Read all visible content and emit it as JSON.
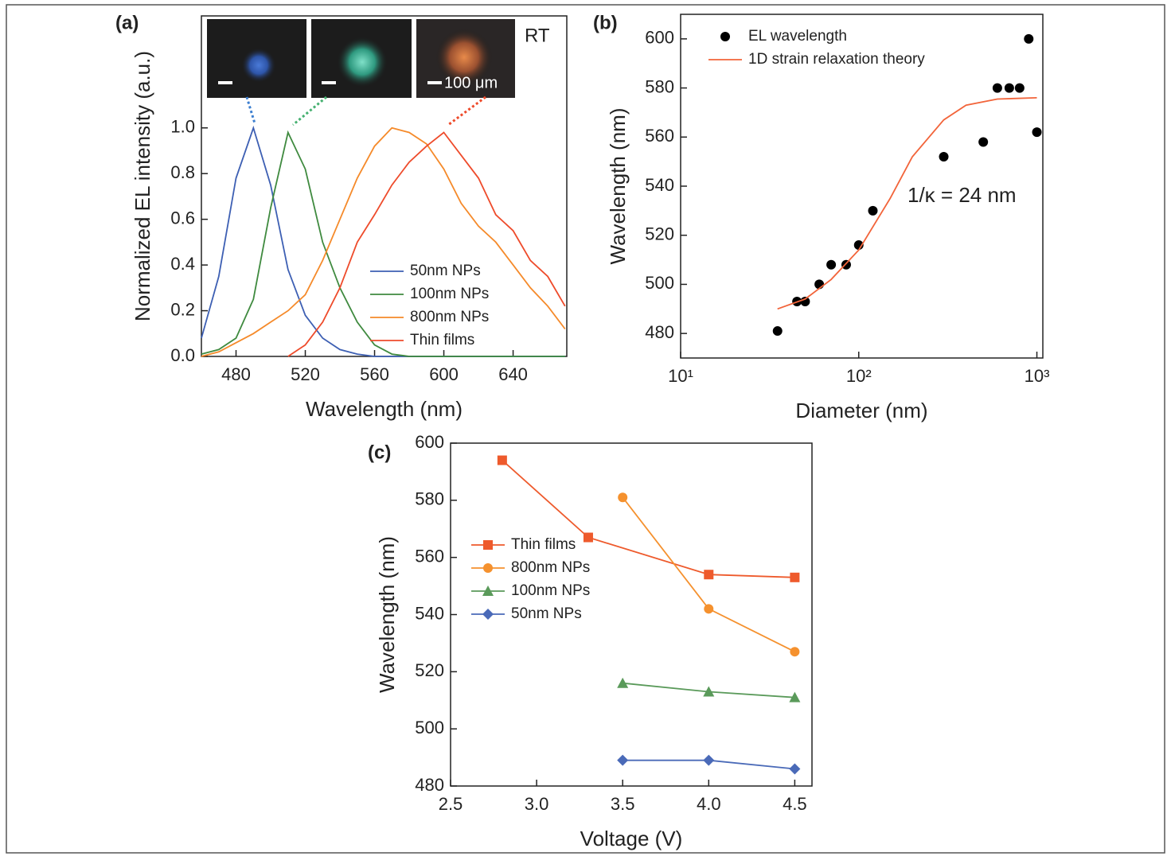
{
  "chart_data": [
    {
      "type": "line",
      "label": "(a)",
      "x_label": "Wavelength (nm)",
      "y_label": "Normalized EL intensity (a.u.)",
      "annotations": [
        "RT",
        "100 μm"
      ],
      "x": [
        460,
        470,
        480,
        490,
        500,
        510,
        520,
        530,
        540,
        550,
        560,
        570,
        580,
        590,
        600,
        610,
        620,
        630,
        640,
        650,
        660,
        670
      ],
      "series": [
        {
          "name": "50nm NPs",
          "color": "#3d5fb3",
          "values": [
            0.08,
            0.35,
            0.78,
            1.0,
            0.75,
            0.38,
            0.18,
            0.08,
            0.03,
            0.01,
            0,
            0,
            0,
            0,
            0,
            0,
            0,
            0,
            0,
            0,
            0,
            0
          ]
        },
        {
          "name": "100nm NPs",
          "color": "#3f8a3f",
          "values": [
            0.01,
            0.03,
            0.08,
            0.25,
            0.65,
            0.98,
            0.82,
            0.5,
            0.3,
            0.15,
            0.05,
            0.01,
            0,
            0,
            0,
            0,
            0,
            0,
            0,
            0,
            0,
            0
          ]
        },
        {
          "name": "800nm NPs",
          "color": "#f58a2a",
          "values": [
            0,
            0.02,
            0.06,
            0.1,
            0.15,
            0.2,
            0.27,
            0.42,
            0.6,
            0.78,
            0.92,
            1.0,
            0.98,
            0.93,
            0.82,
            0.67,
            0.57,
            0.5,
            0.4,
            0.3,
            0.22,
            0.12
          ]
        },
        {
          "name": "Thin films",
          "color": "#ee4b2b",
          "values": [
            null,
            null,
            null,
            null,
            null,
            0.0,
            0.05,
            0.15,
            0.3,
            0.5,
            0.62,
            0.75,
            0.85,
            0.92,
            0.98,
            0.88,
            0.78,
            0.62,
            0.55,
            0.42,
            0.35,
            0.22
          ]
        }
      ],
      "xlim": [
        460,
        671
      ],
      "xticks": [
        480,
        520,
        560,
        600,
        640
      ],
      "ylim": [
        0,
        1.49
      ],
      "yticks": [
        {
          "value": 0,
          "label": "0.0"
        },
        0.2,
        0.4,
        0.6,
        0.8,
        {
          "value": 1,
          "label": "1.0"
        }
      ],
      "legend": "lower right"
    },
    {
      "type": "scatter",
      "label": "(b)",
      "x_label": "Diameter (nm)",
      "y_label": "Wavelength (nm)",
      "annotations": [
        "1/κ = 24 nm"
      ],
      "xscale": "log",
      "series": [
        {
          "name": "EL wavelength",
          "color": "#000000",
          "marker": "circle",
          "line": false,
          "x": [
            35,
            45,
            50,
            60,
            70,
            85,
            100,
            120,
            300,
            500,
            600,
            700,
            800,
            900,
            1000
          ],
          "values": [
            481,
            493,
            493,
            500,
            508,
            508,
            516,
            530,
            552,
            558,
            580,
            580,
            580,
            600,
            562
          ]
        },
        {
          "name": "1D strain relaxation theory",
          "color": "#f2643a",
          "x": [
            35,
            50,
            70,
            100,
            150,
            200,
            300,
            400,
            600,
            1000
          ],
          "values": [
            490,
            494,
            502,
            514,
            535,
            552,
            567,
            573,
            575.5,
            576
          ]
        }
      ],
      "xlim": [
        10,
        1080
      ],
      "xticks": [
        {
          "value": 10,
          "label": "10¹"
        },
        {
          "value": 100,
          "label": "10²"
        },
        {
          "value": 1000,
          "label": "10³"
        }
      ],
      "ylim": [
        470,
        610
      ],
      "yticks": [
        480,
        500,
        520,
        540,
        560,
        580,
        600
      ],
      "legend": "upper left"
    },
    {
      "type": "line",
      "label": "(c)",
      "x_label": "Voltage (V)",
      "y_label": "Wavelength (nm)",
      "series": [
        {
          "name": "Thin films",
          "color": "#ee5a2c",
          "marker": "square",
          "x": [
            2.8,
            3.3,
            4.0,
            4.5
          ],
          "values": [
            594,
            567,
            554,
            553
          ]
        },
        {
          "name": "800nm NPs",
          "color": "#f5912e",
          "marker": "circle",
          "x": [
            3.5,
            4.0,
            4.5
          ],
          "values": [
            581,
            542,
            527
          ]
        },
        {
          "name": "100nm NPs",
          "color": "#5a9a5a",
          "marker": "triangle",
          "x": [
            3.5,
            4.0,
            4.5
          ],
          "values": [
            516,
            513,
            511
          ]
        },
        {
          "name": "50nm NPs",
          "color": "#4a6ab8",
          "marker": "diamond",
          "x": [
            3.5,
            4.0,
            4.5
          ],
          "values": [
            489,
            489,
            486
          ]
        }
      ],
      "xlim": [
        2.5,
        4.6
      ],
      "xticks": [
        2.5,
        {
          "value": 3,
          "label": "3.0"
        },
        3.5,
        {
          "value": 4,
          "label": "4.0"
        },
        4.5
      ],
      "ylim": [
        480,
        600
      ],
      "yticks": [
        480,
        500,
        520,
        540,
        560,
        580,
        600
      ],
      "legend": "center left"
    }
  ]
}
